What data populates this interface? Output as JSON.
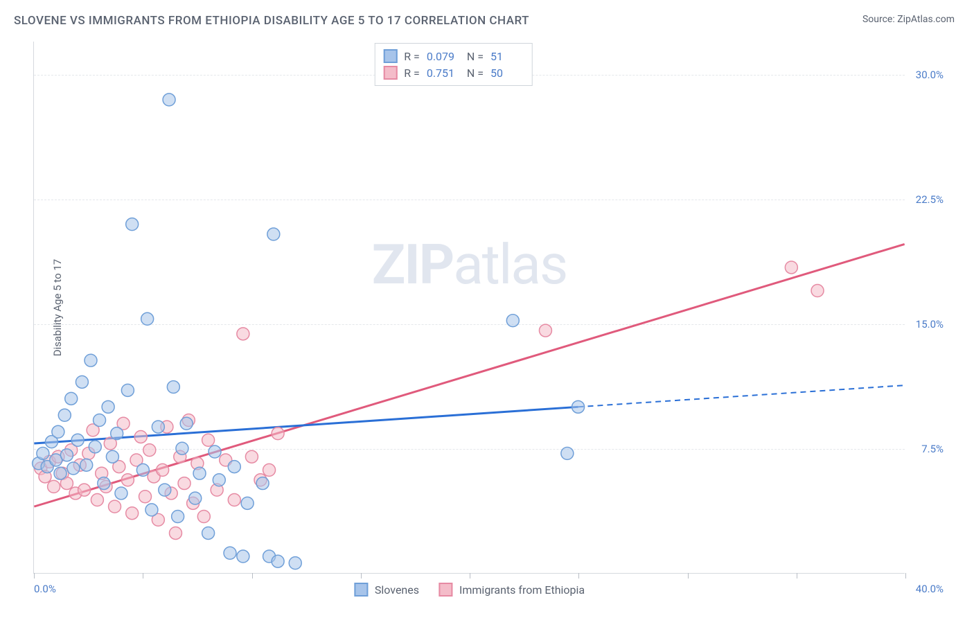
{
  "title": "SLOVENE VS IMMIGRANTS FROM ETHIOPIA DISABILITY AGE 5 TO 17 CORRELATION CHART",
  "source_label": "Source: ZipAtlas.com",
  "watermark": "ZIPatlas",
  "chart": {
    "type": "scatter",
    "ylabel": "Disability Age 5 to 17",
    "xlim": [
      0,
      40
    ],
    "ylim": [
      0,
      32
    ],
    "x_tick_positions": [
      0,
      5,
      10,
      15,
      20,
      25,
      30,
      35,
      40
    ],
    "y_ticks": [
      7.5,
      15.0,
      22.5,
      30.0
    ],
    "y_tick_labels": [
      "7.5%",
      "15.0%",
      "22.5%",
      "30.0%"
    ],
    "x_min_label": "0.0%",
    "x_max_label": "40.0%",
    "grid_color": "#e4e7eb",
    "background_color": "#ffffff",
    "axis_color": "#d5d9de"
  },
  "series": {
    "blue": {
      "name": "Slovenes",
      "color_fill": "#a7c4ea",
      "color_stroke": "#6f9fd8",
      "trend_color": "#2a6fd6",
      "marker_radius": 9,
      "R": "0.079",
      "N": "51",
      "trend": {
        "x1": 0,
        "y1": 7.8,
        "x2_solid": 25,
        "y2_solid": 10.0,
        "x2": 40,
        "y2": 11.3
      },
      "points": [
        [
          0.2,
          6.6
        ],
        [
          0.4,
          7.2
        ],
        [
          0.6,
          6.4
        ],
        [
          0.8,
          7.9
        ],
        [
          1.0,
          6.8
        ],
        [
          1.1,
          8.5
        ],
        [
          1.2,
          6.0
        ],
        [
          1.4,
          9.5
        ],
        [
          1.5,
          7.1
        ],
        [
          1.7,
          10.5
        ],
        [
          1.8,
          6.3
        ],
        [
          2.0,
          8.0
        ],
        [
          2.2,
          11.5
        ],
        [
          2.4,
          6.5
        ],
        [
          2.6,
          12.8
        ],
        [
          2.8,
          7.6
        ],
        [
          3.0,
          9.2
        ],
        [
          3.2,
          5.4
        ],
        [
          3.4,
          10.0
        ],
        [
          3.6,
          7.0
        ],
        [
          3.8,
          8.4
        ],
        [
          4.0,
          4.8
        ],
        [
          4.3,
          11.0
        ],
        [
          4.5,
          21.0
        ],
        [
          5.0,
          6.2
        ],
        [
          5.2,
          15.3
        ],
        [
          5.4,
          3.8
        ],
        [
          5.7,
          8.8
        ],
        [
          6.0,
          5.0
        ],
        [
          6.2,
          28.5
        ],
        [
          6.4,
          11.2
        ],
        [
          6.6,
          3.4
        ],
        [
          6.8,
          7.5
        ],
        [
          7.0,
          9.0
        ],
        [
          7.4,
          4.5
        ],
        [
          7.6,
          6.0
        ],
        [
          8.0,
          2.4
        ],
        [
          8.3,
          7.3
        ],
        [
          8.5,
          5.6
        ],
        [
          9.0,
          1.2
        ],
        [
          9.2,
          6.4
        ],
        [
          9.6,
          1.0
        ],
        [
          9.8,
          4.2
        ],
        [
          10.5,
          5.4
        ],
        [
          10.8,
          1.0
        ],
        [
          11.0,
          20.4
        ],
        [
          11.2,
          0.7
        ],
        [
          12.0,
          0.6
        ],
        [
          22.0,
          15.2
        ],
        [
          24.5,
          7.2
        ],
        [
          25.0,
          10.0
        ]
      ]
    },
    "pink": {
      "name": "Immigrants from Ethiopia",
      "color_fill": "#f4bcc9",
      "color_stroke": "#e68aa3",
      "trend_color": "#e05a7c",
      "marker_radius": 9,
      "R": "0.751",
      "N": "50",
      "trend": {
        "x1": 0,
        "y1": 4.0,
        "x2": 40,
        "y2": 19.8
      },
      "points": [
        [
          0.3,
          6.3
        ],
        [
          0.5,
          5.8
        ],
        [
          0.7,
          6.7
        ],
        [
          0.9,
          5.2
        ],
        [
          1.1,
          7.0
        ],
        [
          1.3,
          6.0
        ],
        [
          1.5,
          5.4
        ],
        [
          1.7,
          7.4
        ],
        [
          1.9,
          4.8
        ],
        [
          2.1,
          6.5
        ],
        [
          2.3,
          5.0
        ],
        [
          2.5,
          7.2
        ],
        [
          2.7,
          8.6
        ],
        [
          2.9,
          4.4
        ],
        [
          3.1,
          6.0
        ],
        [
          3.3,
          5.2
        ],
        [
          3.5,
          7.8
        ],
        [
          3.7,
          4.0
        ],
        [
          3.9,
          6.4
        ],
        [
          4.1,
          9.0
        ],
        [
          4.3,
          5.6
        ],
        [
          4.5,
          3.6
        ],
        [
          4.7,
          6.8
        ],
        [
          4.9,
          8.2
        ],
        [
          5.1,
          4.6
        ],
        [
          5.3,
          7.4
        ],
        [
          5.5,
          5.8
        ],
        [
          5.7,
          3.2
        ],
        [
          5.9,
          6.2
        ],
        [
          6.1,
          8.8
        ],
        [
          6.3,
          4.8
        ],
        [
          6.5,
          2.4
        ],
        [
          6.7,
          7.0
        ],
        [
          6.9,
          5.4
        ],
        [
          7.1,
          9.2
        ],
        [
          7.3,
          4.2
        ],
        [
          7.5,
          6.6
        ],
        [
          7.8,
          3.4
        ],
        [
          8.0,
          8.0
        ],
        [
          8.4,
          5.0
        ],
        [
          8.8,
          6.8
        ],
        [
          9.2,
          4.4
        ],
        [
          9.6,
          14.4
        ],
        [
          10.0,
          7.0
        ],
        [
          10.4,
          5.6
        ],
        [
          10.8,
          6.2
        ],
        [
          11.2,
          8.4
        ],
        [
          23.5,
          14.6
        ],
        [
          34.8,
          18.4
        ],
        [
          36.0,
          17.0
        ]
      ]
    }
  },
  "stats_legend": {
    "rows": [
      {
        "swatch": "blue",
        "r_label": "R =",
        "n_label": "N ="
      },
      {
        "swatch": "pink",
        "r_label": "R =",
        "n_label": "N ="
      }
    ]
  }
}
